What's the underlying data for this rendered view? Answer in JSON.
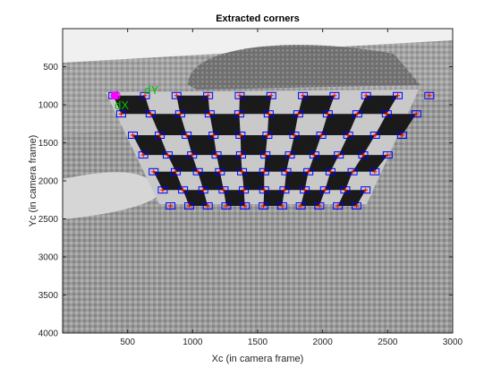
{
  "chart_data": {
    "type": "scatter",
    "title": "Extracted corners",
    "xlabel": "Xc (in camera frame)",
    "ylabel": "Yc (in camera frame)",
    "xlim": [
      0,
      3000
    ],
    "ylim": [
      0,
      4000
    ],
    "y_reversed": true,
    "x_ticks": [
      "500",
      "1000",
      "1500",
      "2000",
      "2500",
      "3000"
    ],
    "y_ticks": [
      "500",
      "1000",
      "1500",
      "2000",
      "2500",
      "3000",
      "3500",
      "4000"
    ],
    "annotations": [
      {
        "text": "dY",
        "x": 630,
        "y": 860,
        "color": "#00c000"
      },
      {
        "text": "dX",
        "x": 400,
        "y": 1060,
        "color": "#00c000"
      },
      {
        "text": "O",
        "x": 400,
        "y": 880,
        "color": "#ff00ff"
      }
    ],
    "grid_rows_y": [
      880,
      1120,
      1400,
      1660,
      1880,
      2120,
      2330
    ],
    "grid_left_x": [
      390,
      450,
      540,
      620,
      700,
      770,
      830
    ],
    "grid_right_x": [
      2820,
      2720,
      2610,
      2500,
      2400,
      2330,
      2260
    ],
    "grid_cols": 11,
    "marker_style": {
      "box_color": "#0000ff",
      "cross_color": "#ff0000"
    },
    "grid": false
  }
}
